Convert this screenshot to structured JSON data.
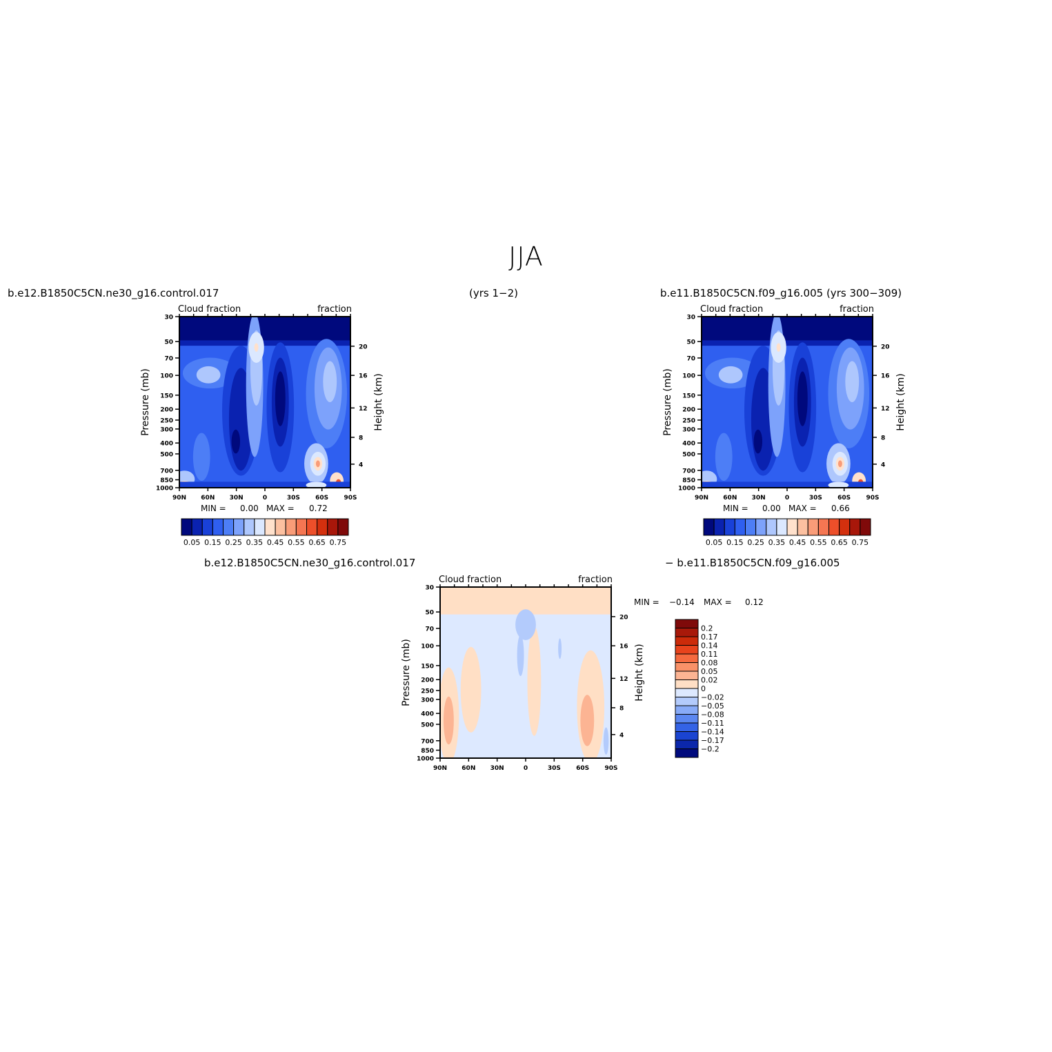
{
  "page": {
    "title": "JJA",
    "case1": "b.e12.B1850C5CN.ne30_g16.control.017",
    "case1_years": "(yrs 1−2)",
    "case2": "b.e11.B1850C5CN.f09_g16.005 (yrs 300−309)",
    "diff_left": "b.e12.B1850C5CN.ne30_g16.control.017",
    "diff_right": "−  b.e11.B1850C5CN.f09_g16.005"
  },
  "chart_data": [
    {
      "type": "contour",
      "id": "panel1",
      "left_label": "Cloud fraction",
      "right_label": "fraction",
      "xlabel": "",
      "ylabel": "Pressure (mb)",
      "y2label": "Height (km)",
      "x_ticks": [
        "90N",
        "60N",
        "30N",
        "0",
        "30S",
        "60S",
        "90S"
      ],
      "y_ticks": [
        30,
        50,
        70,
        100,
        150,
        200,
        250,
        300,
        400,
        500,
        700,
        850,
        1000
      ],
      "y2_ticks": [
        20,
        16,
        12,
        8,
        4
      ],
      "min_label": "MIN =",
      "min_value": "0.00",
      "max_label": "MAX =",
      "max_value": "0.72",
      "levels": [
        "0.05",
        "0.15",
        "0.25",
        "0.35",
        "0.45",
        "0.55",
        "0.65",
        "0.75"
      ]
    },
    {
      "type": "contour",
      "id": "panel2",
      "left_label": "Cloud fraction",
      "right_label": "fraction",
      "xlabel": "",
      "ylabel": "Pressure (mb)",
      "y2label": "Height (km)",
      "x_ticks": [
        "90N",
        "60N",
        "30N",
        "0",
        "30S",
        "60S",
        "90S"
      ],
      "y_ticks": [
        30,
        50,
        70,
        100,
        150,
        200,
        250,
        300,
        400,
        500,
        700,
        850,
        1000
      ],
      "y2_ticks": [
        20,
        16,
        12,
        8,
        4
      ],
      "min_label": "MIN =",
      "min_value": "0.00",
      "max_label": "MAX =",
      "max_value": "0.66",
      "levels": [
        "0.05",
        "0.15",
        "0.25",
        "0.35",
        "0.45",
        "0.55",
        "0.65",
        "0.75"
      ]
    },
    {
      "type": "contour",
      "id": "diff",
      "left_label": "Cloud fraction",
      "right_label": "fraction",
      "xlabel": "",
      "ylabel": "Pressure (mb)",
      "y2label": "Height (km)",
      "x_ticks": [
        "90N",
        "60N",
        "30N",
        "0",
        "30S",
        "60S",
        "90S"
      ],
      "y_ticks": [
        30,
        50,
        70,
        100,
        150,
        200,
        250,
        300,
        400,
        500,
        700,
        850,
        1000
      ],
      "y2_ticks": [
        20,
        16,
        12,
        8,
        4
      ],
      "min_label": "MIN =",
      "min_value": "−0.14",
      "max_label": "MAX =",
      "max_value": "0.12",
      "levels": [
        "0.2",
        "0.17",
        "0.14",
        "0.11",
        "0.08",
        "0.05",
        "0.02",
        "0",
        "−0.02",
        "−0.05",
        "−0.08",
        "−0.11",
        "−0.14",
        "−0.17",
        "−0.2"
      ]
    }
  ],
  "colors": {
    "abs_scale": [
      "#00097d",
      "#0a22b0",
      "#1941d8",
      "#2f5ff0",
      "#4d7ef6",
      "#7da2fb",
      "#aec7fd",
      "#dbe8ff",
      "#ffe1cc",
      "#fcc0a0",
      "#f99c78",
      "#f57652",
      "#ed4f2a",
      "#d4300e",
      "#a8170a",
      "#800a0a"
    ],
    "diff_scale": [
      "#7f0a0a",
      "#a8190a",
      "#cc2b0a",
      "#e8431c",
      "#f56a3f",
      "#f99168",
      "#fcb493",
      "#ffdfc5",
      "#dde9ff",
      "#b3cbfc",
      "#88abf8",
      "#5b87f1",
      "#3463e6",
      "#1a44d1",
      "#0b27ab",
      "#000a7d"
    ]
  }
}
